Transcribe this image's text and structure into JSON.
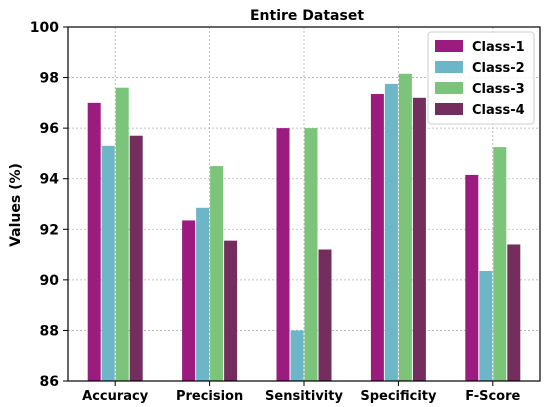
{
  "chart_data": {
    "type": "bar",
    "title": "Entire Dataset",
    "xlabel": "",
    "ylabel": "Values (%)",
    "ylim": [
      86,
      100
    ],
    "yticks": [
      86,
      88,
      90,
      92,
      94,
      96,
      98,
      100
    ],
    "grid": true,
    "legend_position": "top-right",
    "categories": [
      "Accuracy",
      "Precision",
      "Sensitivity",
      "Specificity",
      "F-Score"
    ],
    "series": [
      {
        "name": "Class-1",
        "color": "#9b1b7e",
        "values": [
          97.0,
          92.35,
          96.0,
          97.35,
          94.15
        ]
      },
      {
        "name": "Class-2",
        "color": "#6db6c7",
        "values": [
          95.3,
          92.85,
          88.0,
          97.75,
          90.35
        ]
      },
      {
        "name": "Class-3",
        "color": "#7cc47a",
        "values": [
          97.6,
          94.5,
          96.0,
          98.15,
          95.25
        ]
      },
      {
        "name": "Class-4",
        "color": "#742e5e",
        "values": [
          95.7,
          91.55,
          91.2,
          97.2,
          91.4
        ]
      }
    ]
  }
}
